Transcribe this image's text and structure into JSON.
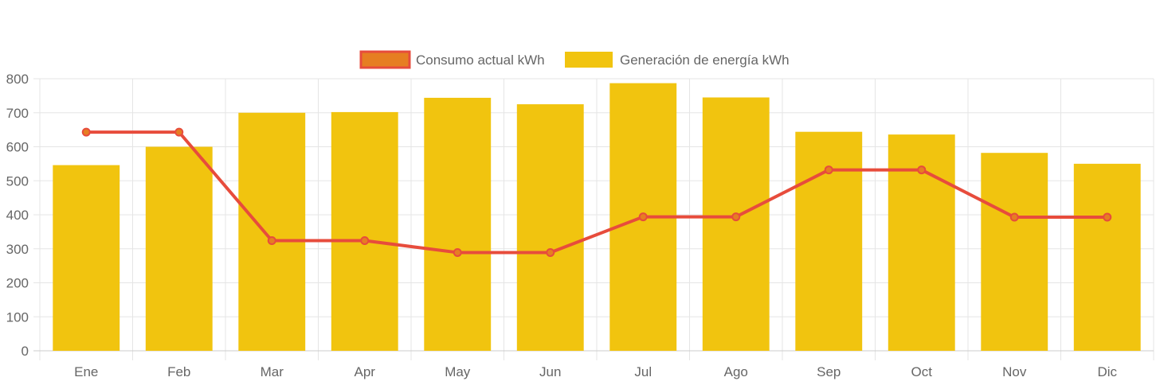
{
  "chart_data": {
    "type": "bar",
    "categories": [
      "Ene",
      "Feb",
      "Mar",
      "Apr",
      "May",
      "Jun",
      "Jul",
      "Ago",
      "Sep",
      "Oct",
      "Nov",
      "Dic"
    ],
    "series": [
      {
        "name": "Consumo actual kWh",
        "type": "line",
        "values": [
          643,
          643,
          324,
          324,
          289,
          289,
          394,
          394,
          532,
          532,
          393,
          393
        ],
        "color": "#e74c3c",
        "point_fill": "#e67e22"
      },
      {
        "name": "Generación de energía kWh",
        "type": "bar",
        "values": [
          546,
          600,
          700,
          702,
          744,
          725,
          787,
          745,
          644,
          636,
          582,
          550
        ],
        "color": "#f1c40f"
      }
    ],
    "title": "",
    "xlabel": "",
    "ylabel": "",
    "ylim": [
      0,
      800
    ],
    "yticks": [
      0,
      100,
      200,
      300,
      400,
      500,
      600,
      700,
      800
    ],
    "grid": true,
    "legend_position": "top"
  }
}
